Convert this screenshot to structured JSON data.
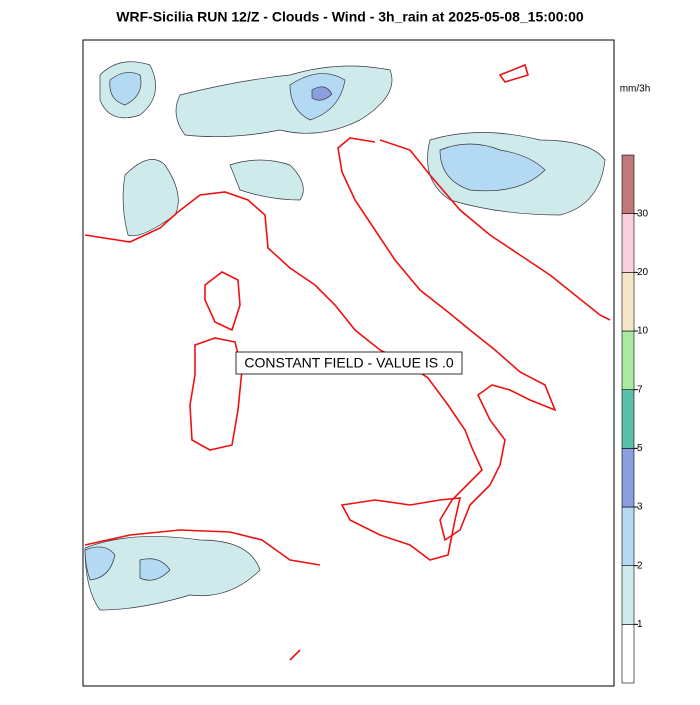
{
  "header": {
    "title": "WRF-Sicilia RUN 12/Z - Clouds - Wind - 3h_rain at 2025-05-08_15:00:00"
  },
  "map": {
    "annotation": "CONSTANT FIELD - VALUE IS .0"
  },
  "colorbar": {
    "units": "mm/3h",
    "levels": [
      1,
      2,
      3,
      5,
      7,
      10,
      20,
      30
    ],
    "colors": [
      "#ffffff",
      "#cfeaea",
      "#b4d9f2",
      "#8b9ede",
      "#5bbfa8",
      "#a8eaa0",
      "#f5e6c8",
      "#f8d0dc",
      "#c07a7a"
    ]
  }
}
